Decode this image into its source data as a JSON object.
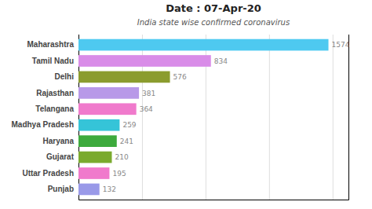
{
  "chart_data": {
    "type": "bar",
    "orientation": "horizontal",
    "title": "Date : 07-Apr-20",
    "subtitle": "India state wise confirmed coronavirus",
    "categories": [
      "Maharashtra",
      "Tamil Nadu",
      "Delhi",
      "Rajasthan",
      "Telangana",
      "Madhya Pradesh",
      "Haryana",
      "Gujarat",
      "Uttar Pradesh",
      "Punjab"
    ],
    "values": [
      1574,
      834,
      576,
      381,
      364,
      259,
      241,
      210,
      195,
      132
    ],
    "colors": [
      "#4ec9f0",
      "#d98ce8",
      "#8b9c2e",
      "#b899e8",
      "#f07acc",
      "#35c4d8",
      "#3daa3d",
      "#7aaa2e",
      "#f07acc",
      "#9999e8"
    ],
    "xlim": [
      0,
      1700
    ],
    "xticks": [
      400,
      800,
      1200,
      1600
    ],
    "grid": true,
    "data_labels": true,
    "tick_labels": "y"
  }
}
